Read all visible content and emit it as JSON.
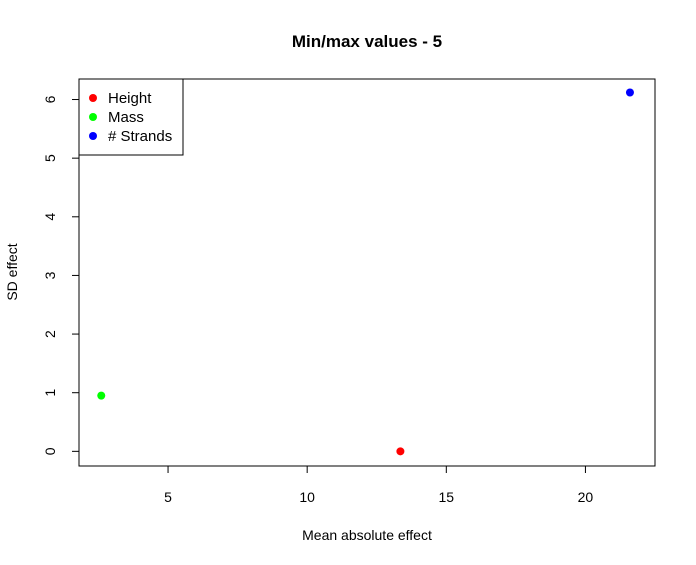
{
  "chart_data": {
    "type": "scatter",
    "title": "Min/max values - 5",
    "xlabel": "Mean absolute effect",
    "ylabel": "SD effect",
    "xlim": [
      1.8,
      22.5
    ],
    "ylim": [
      -0.25,
      6.35
    ],
    "x_ticks": [
      5,
      10,
      15,
      20
    ],
    "y_ticks": [
      0,
      1,
      2,
      3,
      4,
      5,
      6
    ],
    "grid": false,
    "legend_position": "top-left",
    "series": [
      {
        "name": "Height",
        "color": "#ff0000",
        "x": [
          13.35
        ],
        "y": [
          0.0
        ]
      },
      {
        "name": "Mass",
        "color": "#00ff00",
        "x": [
          2.6
        ],
        "y": [
          0.95
        ]
      },
      {
        "name": "# Strands",
        "color": "#0000ff",
        "x": [
          21.6
        ],
        "y": [
          6.12
        ]
      }
    ]
  }
}
